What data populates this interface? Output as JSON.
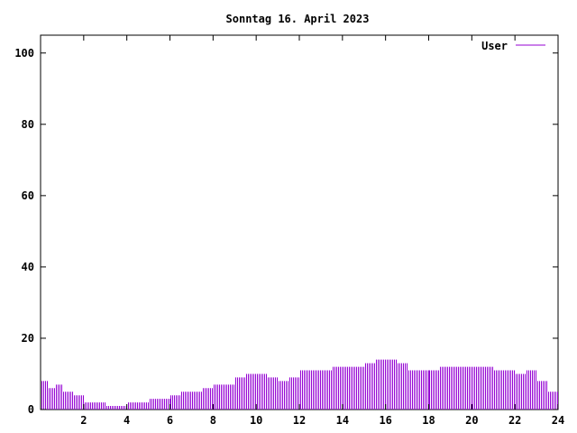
{
  "chart_data": {
    "type": "bar",
    "title": "Sonntag 16. April 2023",
    "xlabel": "",
    "ylabel": "",
    "xlim": [
      0,
      24
    ],
    "ylim": [
      0,
      105
    ],
    "xticks": [
      "2",
      "4",
      "6",
      "8",
      "10",
      "12",
      "14",
      "16",
      "18",
      "20",
      "22",
      "24"
    ],
    "yticks": [
      "0",
      "20",
      "40",
      "60",
      "80",
      "100"
    ],
    "grid": false,
    "legend_position": "top-right",
    "colors": {
      "series": "#9400d3",
      "axis": "#000000",
      "background": "#ffffff"
    },
    "series": [
      {
        "name": "User",
        "segments": [
          [
            0.0,
            0.33,
            8
          ],
          [
            0.33,
            0.67,
            6
          ],
          [
            0.67,
            1.0,
            7
          ],
          [
            1.0,
            1.5,
            5
          ],
          [
            1.5,
            2.0,
            4
          ],
          [
            2.0,
            3.0,
            2
          ],
          [
            3.0,
            4.0,
            1
          ],
          [
            4.0,
            5.0,
            2
          ],
          [
            5.0,
            6.0,
            3
          ],
          [
            6.0,
            6.5,
            4
          ],
          [
            6.5,
            7.0,
            5
          ],
          [
            7.0,
            7.5,
            5
          ],
          [
            7.5,
            8.0,
            6
          ],
          [
            8.0,
            8.5,
            7
          ],
          [
            8.5,
            9.0,
            7
          ],
          [
            9.0,
            9.5,
            9
          ],
          [
            9.5,
            10.5,
            10
          ],
          [
            10.5,
            11.0,
            9
          ],
          [
            11.0,
            11.5,
            8
          ],
          [
            11.5,
            12.0,
            9
          ],
          [
            12.0,
            13.0,
            11
          ],
          [
            13.0,
            13.5,
            11
          ],
          [
            13.5,
            14.0,
            12
          ],
          [
            14.0,
            15.0,
            12
          ],
          [
            15.0,
            15.5,
            13
          ],
          [
            15.5,
            16.0,
            14
          ],
          [
            16.0,
            16.5,
            14
          ],
          [
            16.5,
            17.0,
            13
          ],
          [
            17.0,
            17.5,
            11
          ],
          [
            17.5,
            18.5,
            11
          ],
          [
            18.5,
            20.5,
            12
          ],
          [
            20.5,
            21.0,
            12
          ],
          [
            21.0,
            22.0,
            11
          ],
          [
            22.0,
            22.5,
            10
          ],
          [
            22.5,
            23.0,
            11
          ],
          [
            23.0,
            23.5,
            8
          ],
          [
            23.5,
            24.0,
            5
          ]
        ]
      }
    ]
  }
}
